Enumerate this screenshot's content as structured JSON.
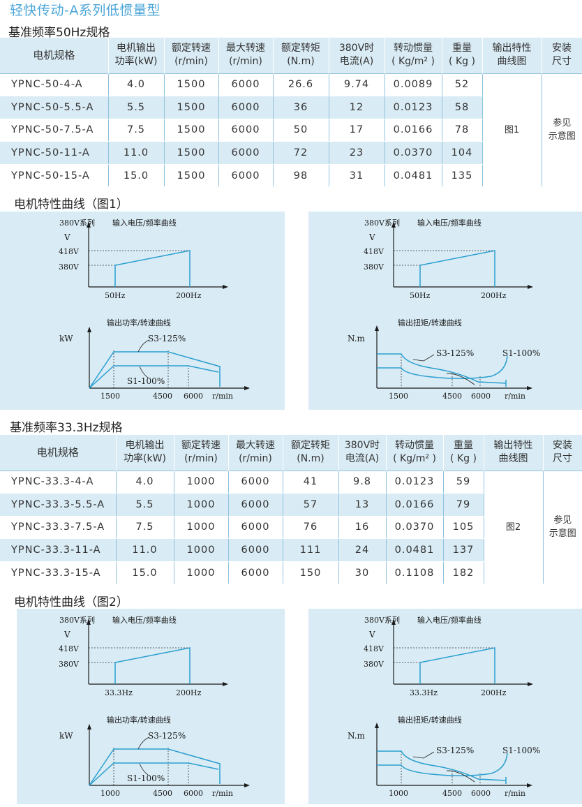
{
  "page_title": "轻快传动-A系列低惯量型",
  "colors": {
    "accent": "#4aa5d8",
    "curve": "#2a9fd0",
    "panel": "#d9ebf4"
  },
  "headers": [
    "电机规格",
    "电机输出功率(kW)",
    "额定转速(r/min)",
    "最大转速(r/min)",
    "额定转矩(N.m)",
    "380V时电流(A)",
    "转动惯量(Kg/m²)",
    "重量(Kg)",
    "输出特性曲线图",
    "安装尺寸"
  ],
  "sections": [
    {
      "title": "基准频率50Hz规格",
      "headers": {
        "model": "电机规格",
        "power": [
          "电机输出",
          "功率(kW)"
        ],
        "rated_speed": [
          "额定转速",
          "(r/min)"
        ],
        "max_speed": [
          "最大转速",
          "(r/min)"
        ],
        "torque": [
          "额定转矩",
          "(N.m)"
        ],
        "current": [
          "380V时",
          "电流(A)"
        ],
        "inertia": [
          "转动惯量",
          "( Kg/m² )"
        ],
        "weight": [
          "重量",
          "( Kg )"
        ],
        "curve": [
          "输出特性",
          "曲线图"
        ],
        "mount": [
          "安装",
          "尺寸"
        ]
      },
      "rows": [
        [
          "YPNC-50-4-A",
          "4.0",
          "1500",
          "6000",
          "26.6",
          "9.74",
          "0.0089",
          "52"
        ],
        [
          "YPNC-50-5.5-A",
          "5.5",
          "1500",
          "6000",
          "36",
          "12",
          "0.0123",
          "58"
        ],
        [
          "YPNC-50-7.5-A",
          "7.5",
          "1500",
          "6000",
          "50",
          "17",
          "0.0166",
          "78"
        ],
        [
          "YPNC-50-11-A",
          "11.0",
          "1500",
          "6000",
          "72",
          "23",
          "0.0370",
          "104"
        ],
        [
          "YPNC-50-15-A",
          "15.0",
          "1500",
          "6000",
          "98",
          "31",
          "0.0481",
          "135"
        ]
      ],
      "curve_ref": "图1",
      "mount_ref": [
        "参见",
        "示意图"
      ],
      "figure_title": "电机特性曲线（图1）",
      "charts": {
        "series_label": "380V系列",
        "vf_title": "输入电压/频率曲线",
        "v_axis": "V",
        "v_high": "418V",
        "v_low": "380V",
        "f_base": "50Hz",
        "f_max": "200Hz",
        "power_title": "输出功率/转速曲线",
        "torque_title": "输出扭矩/转速曲线",
        "kw_axis": "kW",
        "nm_axis": "N.m",
        "s3": "S3-125%",
        "s1": "S1-100%",
        "speed_base": "1500",
        "speed_mid": "4500",
        "speed_max": "6000",
        "speed_unit": "r/min"
      }
    },
    {
      "title": "基准频率33.3Hz规格",
      "headers": {
        "model": "电机规格",
        "power": [
          "电机输出",
          "功率(kW)"
        ],
        "rated_speed": [
          "额定转速",
          "(r/min)"
        ],
        "max_speed": [
          "最大转速",
          "(r/min)"
        ],
        "torque": [
          "额定转矩",
          "(N.m)"
        ],
        "current": [
          "380V时",
          "电流(A)"
        ],
        "inertia": [
          "转动惯量",
          "( Kg/m² )"
        ],
        "weight": [
          "重量",
          "( Kg )"
        ],
        "curve": [
          "输出特性",
          "曲线图"
        ],
        "mount": [
          "安装",
          "尺寸"
        ]
      },
      "rows": [
        [
          "YPNC-33.3-4-A",
          "4.0",
          "1000",
          "6000",
          "41",
          "9.8",
          "0.0123",
          "59"
        ],
        [
          "YPNC-33.3-5.5-A",
          "5.5",
          "1000",
          "6000",
          "57",
          "13",
          "0.0166",
          "79"
        ],
        [
          "YPNC-33.3-7.5-A",
          "7.5",
          "1000",
          "6000",
          "76",
          "16",
          "0.0370",
          "105"
        ],
        [
          "YPNC-33.3-11-A",
          "11.0",
          "1000",
          "6000",
          "111",
          "24",
          "0.0481",
          "137"
        ],
        [
          "YPNC-33.3-15-A",
          "15.0",
          "1000",
          "6000",
          "150",
          "30",
          "0.1108",
          "182"
        ]
      ],
      "curve_ref": "图2",
      "mount_ref": [
        "参见",
        "示意图"
      ],
      "figure_title": "电机特性曲线（图2）",
      "charts": {
        "series_label": "380V系列",
        "vf_title": "输入电压/频率曲线",
        "v_axis": "V",
        "v_high": "418V",
        "v_low": "380V",
        "f_base": "33.3Hz",
        "f_max": "200Hz",
        "power_title": "输出功率/转速曲线",
        "torque_title": "输出扭矩/转速曲线",
        "kw_axis": "kW",
        "nm_axis": "N.m",
        "s3": "S3-125%",
        "s1": "S1-100%",
        "speed_base": "1000",
        "speed_mid": "4500",
        "speed_max": "6000",
        "speed_unit": "r/min"
      }
    }
  ]
}
